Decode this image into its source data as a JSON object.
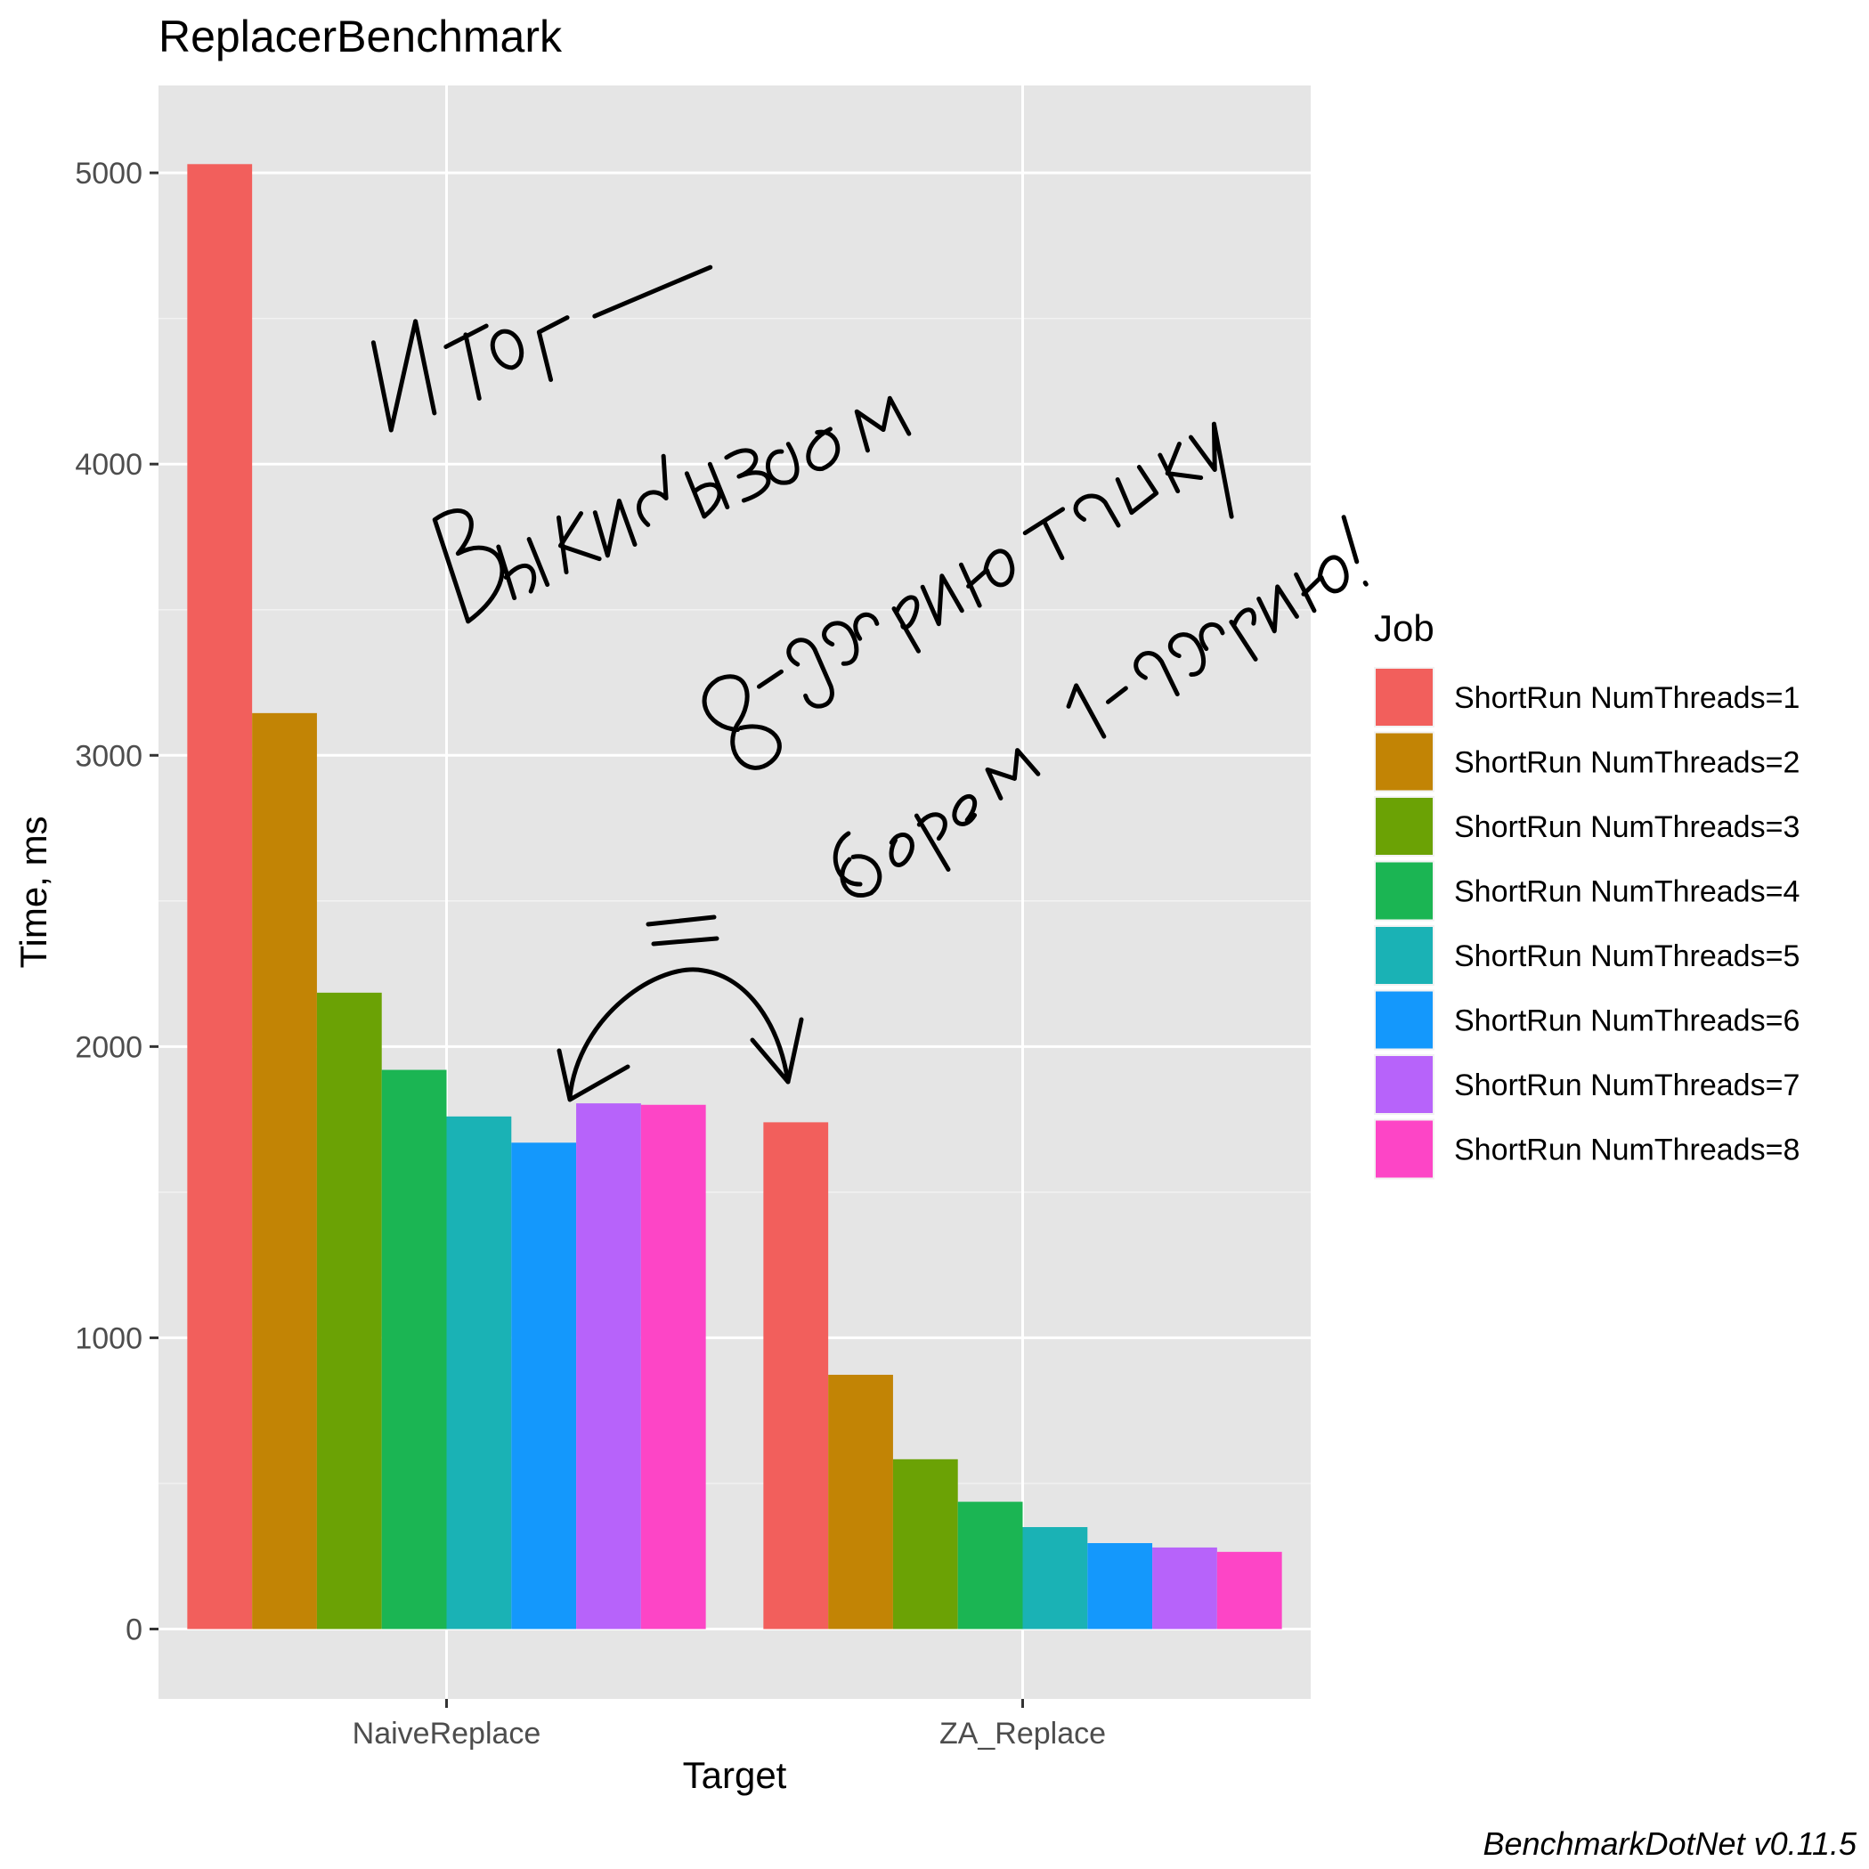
{
  "chart_data": {
    "type": "bar",
    "title": "ReplacerBenchmark",
    "xlabel": "Target",
    "ylabel": "Time, ms",
    "categories": [
      "NaiveReplace",
      "ZA_Replace"
    ],
    "ylim": [
      -240,
      5300
    ],
    "yticks": [
      0,
      1000,
      2000,
      3000,
      4000,
      5000
    ],
    "legend_title": "Job",
    "legend_position": "right",
    "grid": true,
    "caption": "BenchmarkDotNet v0.11.5",
    "series": [
      {
        "name": "ShortRun NumThreads=1",
        "color": "#F25F5C",
        "values": [
          5030,
          1740
        ]
      },
      {
        "name": "ShortRun NumThreads=2",
        "color": "#C28405",
        "values": [
          3145,
          873
        ]
      },
      {
        "name": "ShortRun NumThreads=3",
        "color": "#6BA205",
        "values": [
          2185,
          583
        ]
      },
      {
        "name": "ShortRun NumThreads=4",
        "color": "#1BB553",
        "values": [
          1920,
          437
        ]
      },
      {
        "name": "ShortRun NumThreads=5",
        "color": "#1AB2B5",
        "values": [
          1760,
          350
        ]
      },
      {
        "name": "ShortRun NumThreads=6",
        "color": "#1498FC",
        "values": [
          1670,
          295
        ]
      },
      {
        "name": "ShortRun NumThreads=7",
        "color": "#B763FA",
        "values": [
          1805,
          280
        ]
      },
      {
        "name": "ShortRun NumThreads=8",
        "color": "#FD45C6",
        "values": [
          1800,
          265
        ]
      }
    ]
  },
  "annotation": {
    "kind": "handwritten-note",
    "lines": [
      "Итог —",
      "Выкидываем",
      "8-ядерную тачку,",
      "берем 1-ядерную!",
      "="
    ]
  }
}
